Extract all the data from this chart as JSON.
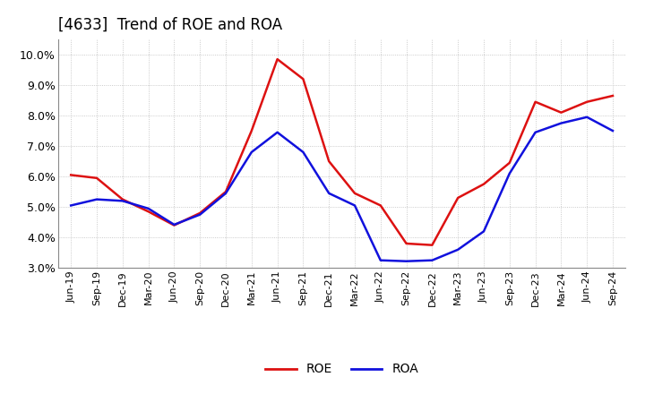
{
  "title": "[4633]  Trend of ROE and ROA",
  "x_labels": [
    "Jun-19",
    "Sep-19",
    "Dec-19",
    "Mar-20",
    "Jun-20",
    "Sep-20",
    "Dec-20",
    "Mar-21",
    "Jun-21",
    "Sep-21",
    "Dec-21",
    "Mar-22",
    "Jun-22",
    "Sep-22",
    "Dec-22",
    "Mar-23",
    "Jun-23",
    "Sep-23",
    "Dec-23",
    "Mar-24",
    "Jun-24",
    "Sep-24"
  ],
  "roe": [
    6.05,
    5.95,
    5.25,
    4.85,
    4.4,
    4.8,
    5.5,
    7.5,
    9.85,
    9.2,
    6.5,
    5.45,
    5.05,
    3.8,
    3.75,
    5.3,
    5.75,
    6.45,
    8.45,
    8.1,
    8.45,
    8.65
  ],
  "roa": [
    5.05,
    5.25,
    5.2,
    4.95,
    4.42,
    4.75,
    5.45,
    6.8,
    7.45,
    6.8,
    5.45,
    5.05,
    3.25,
    3.22,
    3.25,
    3.6,
    4.2,
    6.1,
    7.45,
    7.75,
    7.95,
    7.5
  ],
  "roe_color": "#dd1111",
  "roa_color": "#1111dd",
  "ylim_min": 3.0,
  "ylim_max": 10.5,
  "yticks": [
    3.0,
    4.0,
    5.0,
    6.0,
    7.0,
    8.0,
    9.0,
    10.0
  ],
  "background_color": "#ffffff",
  "grid_color": "#bbbbbb",
  "title_fontsize": 12,
  "line_width": 1.8,
  "legend_fontsize": 10,
  "tick_fontsize": 8,
  "ytick_fontsize": 9
}
